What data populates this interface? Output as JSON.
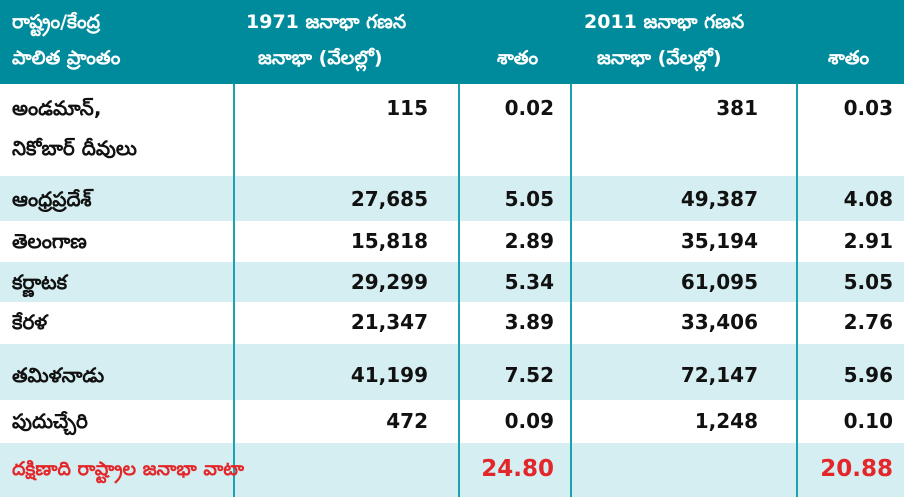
{
  "header": {
    "col1_line1": "రాష్ట్రం/కేంద్ర",
    "col1_line2": "పాలిత ప్రాంతం",
    "col2_line1": "1971 జనాభా గణన",
    "col2_line2": "జనాభా (వేలల్లో)",
    "col3": "శాతం",
    "col4_line1": "2011 జనాభా గణన",
    "col4_line2": "జనాభా (వేలల్లో)",
    "col5": "శాతం"
  },
  "rows": [
    {
      "name": "అండమాన్,",
      "name2": "నికోబార్ దీవులు",
      "pop1971": "115",
      "pct1971": "0.02",
      "pop2011": "381",
      "pct2011": "0.03"
    },
    {
      "name": "ఆంధ్రప్రదేశ్",
      "pop1971": "27,685",
      "pct1971": "5.05",
      "pop2011": "49,387",
      "pct2011": "4.08"
    },
    {
      "name": "తెలంగాణ",
      "pop1971": "15,818",
      "pct1971": "2.89",
      "pop2011": "35,194",
      "pct2011": "2.91"
    },
    {
      "name": "కర్ణాటక",
      "pop1971": "29,299",
      "pct1971": "5.34",
      "pop2011": "61,095",
      "pct2011": "5.05"
    },
    {
      "name": "కేరళ",
      "pop1971": "21,347",
      "pct1971": "3.89",
      "pop2011": "33,406",
      "pct2011": "2.76"
    },
    {
      "name": "తమిళనాడు",
      "pop1971": "41,199",
      "pct1971": "7.52",
      "pop2011": "72,147",
      "pct2011": "5.96"
    },
    {
      "name": "పుదుచ్చేరి",
      "pop1971": "472",
      "pct1971": "0.09",
      "pop2011": "1,248",
      "pct2011": "0.10"
    }
  ],
  "total": {
    "label": "దక్షిణాది రాష్ట్రాల జనాభా వాటా",
    "pct1971": "24.80",
    "pct2011": "20.88"
  },
  "colors": {
    "header_bg": "#008b9c",
    "row_alt_bg": "#d4eef1",
    "total_text": "#e3262a"
  }
}
